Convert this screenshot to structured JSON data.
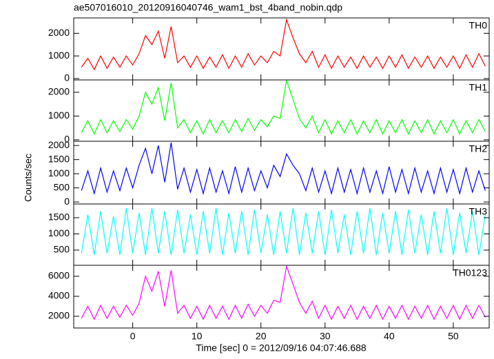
{
  "chart_data": [
    {
      "type": "line",
      "title": "ae507016010_20120916040746_wam1_bst_4band_nobin.qdp",
      "label": "TH0",
      "color": "#ff0000",
      "x": [
        -8,
        -7,
        -6,
        -5,
        -4,
        -3,
        -2,
        -1,
        0,
        1,
        2,
        3,
        4,
        5,
        6,
        7,
        8,
        9,
        10,
        11,
        12,
        13,
        14,
        15,
        16,
        17,
        18,
        19,
        20,
        21,
        22,
        23,
        24,
        25,
        26,
        27,
        28,
        29,
        30,
        31,
        32,
        33,
        34,
        35,
        36,
        37,
        38,
        39,
        40,
        41,
        42,
        43,
        44,
        45,
        46,
        47,
        48,
        49,
        50,
        51,
        52,
        53,
        54,
        55
      ],
      "values": [
        500,
        900,
        400,
        1000,
        450,
        950,
        500,
        1000,
        600,
        1100,
        1900,
        1500,
        2100,
        900,
        2300,
        700,
        1000,
        500,
        1000,
        450,
        950,
        500,
        1050,
        450,
        1000,
        500,
        1100,
        600,
        1000,
        700,
        1200,
        1000,
        2600,
        1800,
        1100,
        700,
        1200,
        500,
        1050,
        450,
        1000,
        500,
        950,
        450,
        1000,
        500,
        950,
        450,
        1000,
        500,
        1050,
        450,
        950,
        500,
        1000,
        450,
        950,
        500,
        1000,
        450,
        1050,
        500,
        1100,
        550
      ],
      "xlim": [
        -9.2,
        55.6
      ],
      "ylim": [
        -60,
        2680
      ],
      "yticks": [
        0,
        1000,
        2000
      ]
    },
    {
      "type": "line",
      "label": "TH1",
      "color": "#00ff00",
      "x": [
        -8,
        -7,
        -6,
        -5,
        -4,
        -3,
        -2,
        -1,
        0,
        1,
        2,
        3,
        4,
        5,
        6,
        7,
        8,
        9,
        10,
        11,
        12,
        13,
        14,
        15,
        16,
        17,
        18,
        19,
        20,
        21,
        22,
        23,
        24,
        25,
        26,
        27,
        28,
        29,
        30,
        31,
        32,
        33,
        34,
        35,
        36,
        37,
        38,
        39,
        40,
        41,
        42,
        43,
        44,
        45,
        46,
        47,
        48,
        49,
        50,
        51,
        52,
        53,
        54,
        55
      ],
      "values": [
        300,
        800,
        250,
        850,
        300,
        800,
        350,
        850,
        450,
        1000,
        2000,
        1500,
        2200,
        800,
        2400,
        500,
        850,
        300,
        800,
        250,
        850,
        300,
        800,
        300,
        850,
        350,
        900,
        400,
        850,
        550,
        1000,
        900,
        2500,
        1700,
        900,
        500,
        1000,
        300,
        850,
        250,
        800,
        300,
        850,
        250,
        800,
        300,
        850,
        250,
        800,
        300,
        850,
        250,
        800,
        300,
        850,
        250,
        800,
        300,
        850,
        250,
        800,
        300,
        850,
        350
      ],
      "xlim": [
        -9.2,
        55.6
      ],
      "ylim": [
        -60,
        2520
      ],
      "yticks": [
        0,
        1000,
        2000
      ]
    },
    {
      "type": "line",
      "label": "TH2",
      "color": "#0000ff",
      "x": [
        -8,
        -7,
        -6,
        -5,
        -4,
        -3,
        -2,
        -1,
        0,
        1,
        2,
        3,
        4,
        5,
        6,
        7,
        8,
        9,
        10,
        11,
        12,
        13,
        14,
        15,
        16,
        17,
        18,
        19,
        20,
        21,
        22,
        23,
        24,
        25,
        26,
        27,
        28,
        29,
        30,
        31,
        32,
        33,
        34,
        35,
        36,
        37,
        38,
        39,
        40,
        41,
        42,
        43,
        44,
        45,
        46,
        47,
        48,
        49,
        50,
        51,
        52,
        53,
        54,
        55
      ],
      "values": [
        400,
        1100,
        300,
        1200,
        350,
        1100,
        400,
        1200,
        500,
        1300,
        1900,
        1000,
        2000,
        700,
        2100,
        450,
        1200,
        350,
        1150,
        300,
        1200,
        350,
        1100,
        300,
        1250,
        350,
        1200,
        400,
        1100,
        500,
        1300,
        900,
        1700,
        1300,
        1000,
        400,
        1200,
        350,
        1100,
        300,
        1200,
        350,
        1150,
        300,
        1200,
        350,
        1100,
        300,
        1250,
        350,
        1150,
        300,
        1200,
        350,
        1100,
        300,
        1200,
        350,
        1150,
        300,
        1200,
        350,
        1100,
        400
      ],
      "xlim": [
        -9.2,
        55.6
      ],
      "ylim": [
        -70,
        2150
      ],
      "yticks": [
        0,
        500,
        1000,
        1500,
        2000
      ]
    },
    {
      "type": "line",
      "label": "TH3",
      "color": "#00ffff",
      "x": [
        -8,
        -7,
        -6,
        -5,
        -4,
        -3,
        -2,
        -1,
        0,
        1,
        2,
        3,
        4,
        5,
        6,
        7,
        8,
        9,
        10,
        11,
        12,
        13,
        14,
        15,
        16,
        17,
        18,
        19,
        20,
        21,
        22,
        23,
        24,
        25,
        26,
        27,
        28,
        29,
        30,
        31,
        32,
        33,
        34,
        35,
        36,
        37,
        38,
        39,
        40,
        41,
        42,
        43,
        44,
        45,
        46,
        47,
        48,
        49,
        50,
        51,
        52,
        53,
        54,
        55
      ],
      "values": [
        400,
        1600,
        350,
        1700,
        400,
        1550,
        350,
        1800,
        400,
        1650,
        350,
        1800,
        400,
        1700,
        350,
        1750,
        400,
        1600,
        350,
        1700,
        400,
        1800,
        350,
        1650,
        400,
        1700,
        350,
        1750,
        400,
        1600,
        350,
        1700,
        400,
        1800,
        350,
        1650,
        400,
        1700,
        350,
        1750,
        400,
        1600,
        350,
        1700,
        400,
        1800,
        350,
        1650,
        400,
        1700,
        350,
        1750,
        400,
        1600,
        350,
        1700,
        400,
        1800,
        350,
        1650,
        400,
        1700,
        350,
        1600
      ],
      "xlim": [
        -9.2,
        55.6
      ],
      "ylim": [
        30,
        1925
      ],
      "yticks": [
        500,
        1000,
        1500
      ]
    },
    {
      "type": "line",
      "label": "TH0123",
      "color": "#ff00ff",
      "xlabel": "Time [sec] 0 = 2012/09/16 04:07:46.688",
      "ylabel": "Counts/sec",
      "x": [
        -8,
        -7,
        -6,
        -5,
        -4,
        -3,
        -2,
        -1,
        0,
        1,
        2,
        3,
        4,
        5,
        6,
        7,
        8,
        9,
        10,
        11,
        12,
        13,
        14,
        15,
        16,
        17,
        18,
        19,
        20,
        21,
        22,
        23,
        24,
        25,
        26,
        27,
        28,
        29,
        30,
        31,
        32,
        33,
        34,
        35,
        36,
        37,
        38,
        39,
        40,
        41,
        42,
        43,
        44,
        45,
        46,
        47,
        48,
        49,
        50,
        51,
        52,
        53,
        54,
        55
      ],
      "values": [
        1800,
        3000,
        1700,
        3100,
        1800,
        3000,
        1900,
        3100,
        2100,
        3300,
        6000,
        4500,
        6500,
        3000,
        6600,
        2300,
        3100,
        1800,
        3000,
        1700,
        3100,
        1800,
        3000,
        1700,
        3100,
        1800,
        3200,
        2000,
        3100,
        2300,
        3600,
        3400,
        7000,
        5200,
        3400,
        2300,
        3500,
        1800,
        3100,
        1700,
        3000,
        1800,
        3100,
        1700,
        3000,
        1800,
        3100,
        1700,
        3000,
        1800,
        3100,
        1700,
        3000,
        1800,
        3100,
        1700,
        3000,
        1800,
        3100,
        1700,
        3100,
        1800,
        3100,
        1900
      ],
      "xlim": [
        -9.2,
        55.6
      ],
      "ylim": [
        830,
        7100
      ],
      "yticks": [
        2000,
        4000,
        6000
      ],
      "xticks": [
        0,
        10,
        20,
        30,
        40,
        50
      ]
    }
  ]
}
